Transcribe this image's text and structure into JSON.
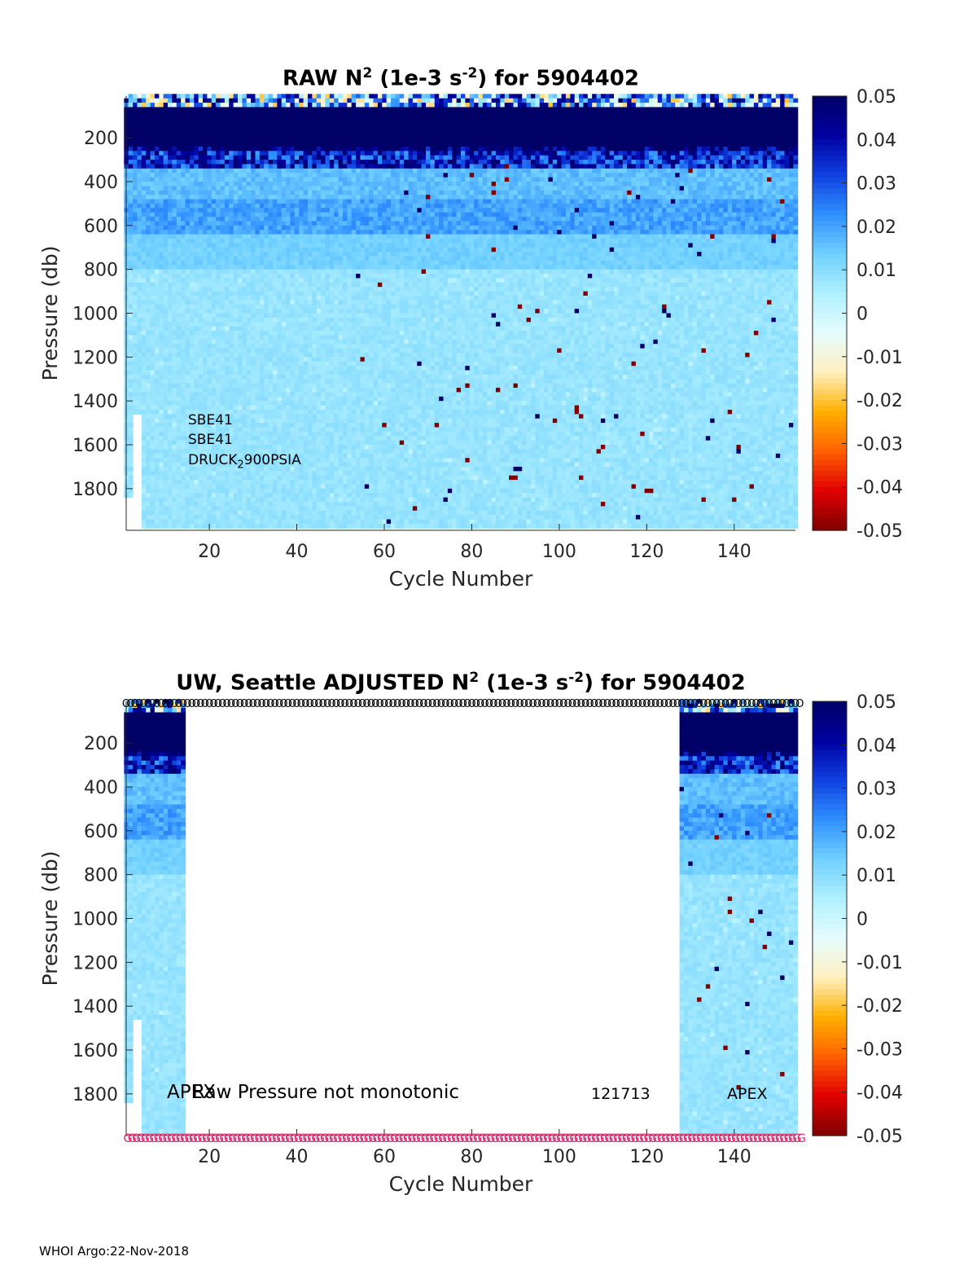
{
  "footer": "WHOI Argo:22-Nov-2018",
  "colors": {
    "colormap_stops": [
      "#7f0000",
      "#e00000",
      "#ff6000",
      "#ffb000",
      "#fff0c0",
      "#e6fcff",
      "#b0f0ff",
      "#70d0ff",
      "#3090ff",
      "#1040e0",
      "#0000a0",
      "#000066"
    ]
  },
  "chart_data": [
    {
      "type": "heatmap",
      "title_pre": "RAW N",
      "title_sup1": "2",
      "title_mid": " (1e-3 s",
      "title_sup2": "-2",
      "title_post": ") for 5904402",
      "xlabel": "Cycle Number",
      "ylabel": "Pressure (db)",
      "xlim": [
        1,
        154
      ],
      "ylim": [
        1990,
        10
      ],
      "xticks": [
        20,
        40,
        60,
        80,
        100,
        120,
        140
      ],
      "yticks": [
        200,
        400,
        600,
        800,
        1000,
        1200,
        1400,
        1600,
        1800
      ],
      "clim": [
        -0.05,
        0.05
      ],
      "colorbar_ticks": [
        "0.05",
        "0.04",
        "0.03",
        "0.02",
        "0.01",
        "0",
        "-0.01",
        "-0.02",
        "-0.03",
        "-0.04",
        "-0.05"
      ],
      "data_cycles": [
        1,
        154
      ],
      "seed": 7,
      "annotations": {
        "sensor1": "SBE41",
        "sensor2": "SBE41",
        "sensor3_pre": "DRUCK",
        "sensor3_sub": "2",
        "sensor3_post": "900PSIA"
      }
    },
    {
      "type": "heatmap",
      "title_pre": "UW, Seattle  ADJUSTED N",
      "title_sup1": "2",
      "title_mid": " (1e-3 s",
      "title_sup2": "-2",
      "title_post": ") for 5904402",
      "xlabel": "Cycle Number",
      "ylabel": "Pressure (db)",
      "xlim": [
        1,
        154
      ],
      "ylim": [
        1990,
        10
      ],
      "xticks": [
        20,
        40,
        60,
        80,
        100,
        120,
        140
      ],
      "yticks": [
        200,
        400,
        600,
        800,
        1000,
        1200,
        1400,
        1600,
        1800
      ],
      "clim": [
        -0.05,
        0.05
      ],
      "colorbar_ticks": [
        "0.05",
        "0.04",
        "0.03",
        "0.02",
        "0.01",
        "0",
        "-0.01",
        "-0.02",
        "-0.03",
        "-0.04",
        "-0.05"
      ],
      "data_ranges": [
        [
          1,
          14
        ],
        [
          128,
          154
        ]
      ],
      "seed": 11,
      "top_marker": "O",
      "bottom_marker": "G",
      "marker_color_top": "#000000",
      "marker_color_bottom": "#e0206e",
      "annotations": {
        "apex_left": "APEX",
        "qc_message": "Raw Pressure not monotonic",
        "date_code": "121713",
        "apex_right": "APEX"
      }
    }
  ]
}
